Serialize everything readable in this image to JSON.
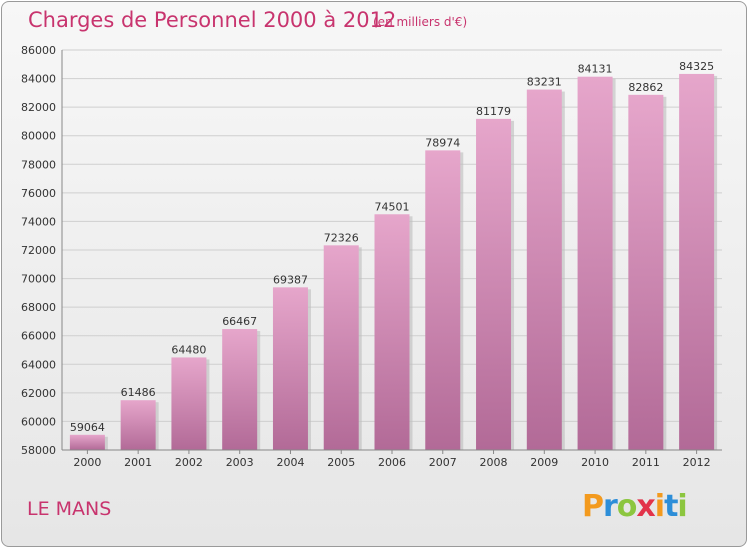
{
  "title": "Charges de Personnel 2000 à 2012",
  "subtitle": "(en milliers d'€)",
  "footer_name": "LE MANS",
  "logo": {
    "text": "Proxiti",
    "colors": [
      "#f39a1e",
      "#2d8ed8",
      "#8cc63f",
      "#e2334a",
      "#f39a1e",
      "#2d8ed8",
      "#8cc63f"
    ]
  },
  "colors": {
    "title": "#c8346e",
    "bar_top": "#e6a6cb",
    "bar_bottom": "#b26a97",
    "grid": "#cfcfcf"
  },
  "chart_data": {
    "type": "bar",
    "categories": [
      "2000",
      "2001",
      "2002",
      "2003",
      "2004",
      "2005",
      "2006",
      "2007",
      "2008",
      "2009",
      "2010",
      "2011",
      "2012"
    ],
    "values": [
      59064,
      61486,
      64480,
      66467,
      69387,
      72326,
      74501,
      78974,
      81179,
      83231,
      84131,
      82862,
      84325
    ],
    "ylim": [
      58000,
      86000
    ],
    "yticks": [
      "58000",
      "60000",
      "62000",
      "64000",
      "66000",
      "68000",
      "70000",
      "72000",
      "74000",
      "76000",
      "78000",
      "80000",
      "82000",
      "84000",
      "86000"
    ],
    "grid": true,
    "title": "Charges de Personnel 2000 à 2012",
    "xlabel": "",
    "ylabel": ""
  }
}
